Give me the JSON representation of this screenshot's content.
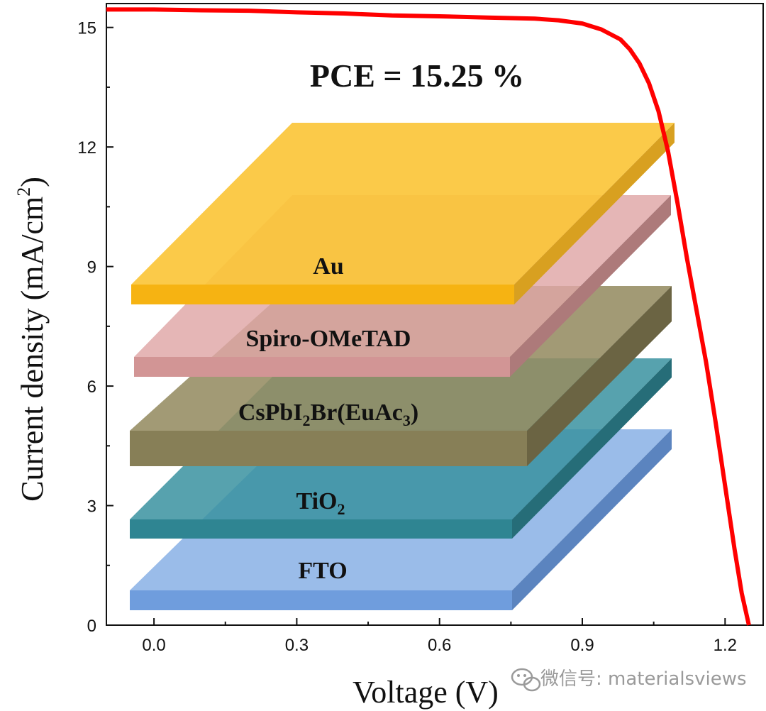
{
  "chart_data": {
    "type": "line",
    "title": "",
    "xlabel": "Voltage (V)",
    "ylabel_main": "Current density (mA/cm",
    "ylabel_sup": "2",
    "ylabel_close": ")",
    "xlim": [
      -0.1,
      1.28
    ],
    "ylim": [
      0,
      15.6
    ],
    "xticks": [
      0.0,
      0.3,
      0.6,
      0.9,
      1.2
    ],
    "xtick_labels": [
      "0.0",
      "0.3",
      "0.6",
      "0.9",
      "1.2"
    ],
    "yticks": [
      0,
      3,
      6,
      9,
      12,
      15
    ],
    "ytick_labels": [
      "0",
      "3",
      "6",
      "9",
      "12",
      "15"
    ],
    "series": [
      {
        "name": "J-V",
        "color": "#ff0000",
        "x": [
          -0.1,
          0.0,
          0.1,
          0.2,
          0.3,
          0.4,
          0.5,
          0.6,
          0.7,
          0.8,
          0.85,
          0.9,
          0.94,
          0.98,
          1.0,
          1.02,
          1.04,
          1.06,
          1.08,
          1.1,
          1.12,
          1.14,
          1.16,
          1.18,
          1.2,
          1.22,
          1.235,
          1.25
        ],
        "y": [
          15.45,
          15.45,
          15.43,
          15.42,
          15.38,
          15.35,
          15.3,
          15.28,
          15.25,
          15.22,
          15.18,
          15.1,
          14.95,
          14.7,
          14.45,
          14.1,
          13.6,
          12.9,
          11.9,
          10.6,
          9.2,
          7.9,
          6.6,
          5.1,
          3.5,
          1.9,
          0.8,
          0.0
        ]
      }
    ],
    "annotations": {
      "pce_text": "PCE = 15.25  %"
    },
    "layers": [
      {
        "label": "Au",
        "color": "#f9bd1b"
      },
      {
        "label": "Spiro-OMeTAD",
        "color": "#dba0a0"
      },
      {
        "label_main": "CsPbI",
        "label_sub1": "2",
        "label_mid": "Br(EuAc",
        "label_sub2": "3",
        "label_end": ")",
        "color": "#8a805a"
      },
      {
        "label_main": "TiO",
        "label_sub1": "2",
        "color": "#2f8a98"
      },
      {
        "label": "FTO",
        "color": "#7fa7e2"
      }
    ]
  },
  "watermark": {
    "text": "微信号: materialsviews",
    "icon": "wechat-icon"
  }
}
